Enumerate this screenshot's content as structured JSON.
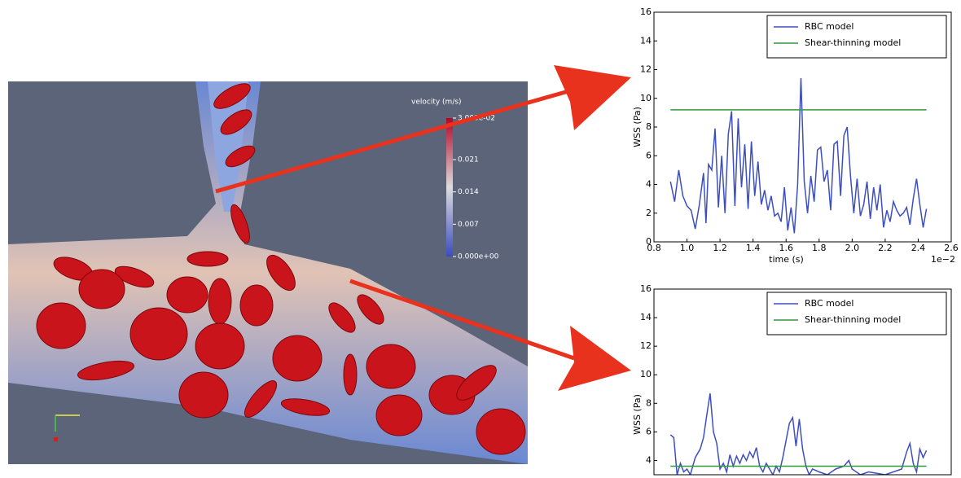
{
  "simulation": {
    "colorbar": {
      "title": "velocity (m/s)",
      "lim": [
        0,
        0.03
      ],
      "ticks": [
        {
          "value": 0,
          "label": "0.000e+00"
        },
        0.007,
        0.014,
        0.021,
        {
          "value": 0.03,
          "label": "3.000e-02"
        }
      ]
    }
  },
  "chart_data": [
    {
      "type": "line",
      "xlabel": "time (s)",
      "ylabel": "WSS (Pa)",
      "x_offset_label": "1e−2",
      "xlim": [
        0.8,
        2.6
      ],
      "ylim": [
        0,
        16
      ],
      "xticks": [
        0.8,
        {
          "value": 1,
          "label": "1.0"
        },
        1.2,
        1.4,
        1.6,
        1.8,
        {
          "value": 2,
          "label": "2.0"
        },
        2.2,
        2.4,
        2.6
      ],
      "yticks": [
        0,
        2,
        4,
        6,
        8,
        10,
        12,
        14,
        16
      ],
      "legend": "upper right",
      "series": [
        {
          "name": "RBC model",
          "color": "#3d4fc0",
          "x": [
            0.9,
            0.925,
            0.95,
            0.975,
            1.0,
            1.025,
            1.05,
            1.075,
            1.1,
            1.115,
            1.13,
            1.15,
            1.17,
            1.19,
            1.21,
            1.23,
            1.25,
            1.27,
            1.29,
            1.31,
            1.33,
            1.35,
            1.37,
            1.39,
            1.41,
            1.43,
            1.45,
            1.47,
            1.49,
            1.51,
            1.53,
            1.55,
            1.57,
            1.59,
            1.61,
            1.63,
            1.65,
            1.67,
            1.69,
            1.71,
            1.73,
            1.75,
            1.77,
            1.79,
            1.81,
            1.83,
            1.85,
            1.87,
            1.89,
            1.91,
            1.93,
            1.95,
            1.97,
            1.99,
            2.01,
            2.03,
            2.05,
            2.07,
            2.09,
            2.11,
            2.13,
            2.15,
            2.17,
            2.19,
            2.21,
            2.23,
            2.25,
            2.27,
            2.29,
            2.31,
            2.33,
            2.35,
            2.37,
            2.39,
            2.41,
            2.43,
            2.45
          ],
          "values": [
            4.2,
            2.8,
            5.0,
            3.2,
            2.5,
            2.2,
            0.9,
            2.6,
            4.8,
            1.3,
            5.4,
            5.0,
            7.9,
            2.4,
            6.0,
            2.0,
            7.5,
            9.1,
            2.5,
            8.6,
            3.8,
            6.8,
            2.3,
            7.0,
            3.2,
            5.6,
            2.6,
            3.6,
            2.2,
            3.2,
            1.8,
            2.0,
            1.4,
            3.8,
            0.8,
            2.4,
            0.6,
            4.0,
            11.4,
            4.2,
            2.0,
            4.6,
            2.8,
            6.4,
            6.6,
            4.2,
            5.0,
            2.2,
            6.8,
            7.0,
            3.2,
            7.4,
            8.0,
            4.6,
            2.0,
            4.4,
            1.8,
            2.6,
            4.2,
            1.6,
            3.8,
            2.2,
            4.0,
            1.0,
            2.2,
            1.4,
            2.8,
            2.2,
            1.8,
            2.0,
            2.4,
            1.2,
            3.0,
            4.4,
            2.6,
            1.0,
            2.3
          ]
        },
        {
          "name": "Shear-thinning model",
          "color": "#2e9a3a",
          "x": [
            0.9,
            2.45
          ],
          "values": [
            9.2,
            9.2
          ]
        }
      ]
    },
    {
      "type": "line",
      "ylabel": "WSS (Pa)",
      "xlim": [
        0.8,
        2.6
      ],
      "ylim": [
        3,
        16
      ],
      "yticks": [
        4,
        6,
        8,
        10,
        12,
        14,
        16
      ],
      "legend": "upper right",
      "series": [
        {
          "name": "RBC model",
          "color": "#3d4fc0",
          "x": [
            0.9,
            0.92,
            0.94,
            0.96,
            0.98,
            1.0,
            1.02,
            1.05,
            1.08,
            1.1,
            1.12,
            1.14,
            1.16,
            1.18,
            1.2,
            1.22,
            1.24,
            1.26,
            1.28,
            1.3,
            1.32,
            1.34,
            1.36,
            1.38,
            1.4,
            1.42,
            1.44,
            1.46,
            1.48,
            1.5,
            1.52,
            1.54,
            1.56,
            1.58,
            1.6,
            1.62,
            1.64,
            1.66,
            1.68,
            1.7,
            1.72,
            1.74,
            1.76,
            1.8,
            1.85,
            1.9,
            1.95,
            1.98,
            2.0,
            2.05,
            2.1,
            2.2,
            2.3,
            2.33,
            2.35,
            2.37,
            2.39,
            2.41,
            2.43,
            2.45
          ],
          "values": [
            5.8,
            5.6,
            3.0,
            3.8,
            3.2,
            3.4,
            3.0,
            4.2,
            4.8,
            5.6,
            7.2,
            8.7,
            6.0,
            5.2,
            3.4,
            3.8,
            3.2,
            4.4,
            3.6,
            4.3,
            3.8,
            4.4,
            4.0,
            4.6,
            4.2,
            4.9,
            3.6,
            3.2,
            3.8,
            3.4,
            3.0,
            3.6,
            3.2,
            4.2,
            5.4,
            6.6,
            7.0,
            5.0,
            6.9,
            4.8,
            3.6,
            3.0,
            3.4,
            3.2,
            3.0,
            3.4,
            3.6,
            4.0,
            3.4,
            3.0,
            3.2,
            3.0,
            3.4,
            4.6,
            5.2,
            3.8,
            3.2,
            4.8,
            4.2,
            4.7
          ]
        },
        {
          "name": "Shear-thinning model",
          "color": "#2e9a3a",
          "x": [
            0.9,
            2.45
          ],
          "values": [
            3.6,
            3.6
          ]
        }
      ]
    }
  ]
}
